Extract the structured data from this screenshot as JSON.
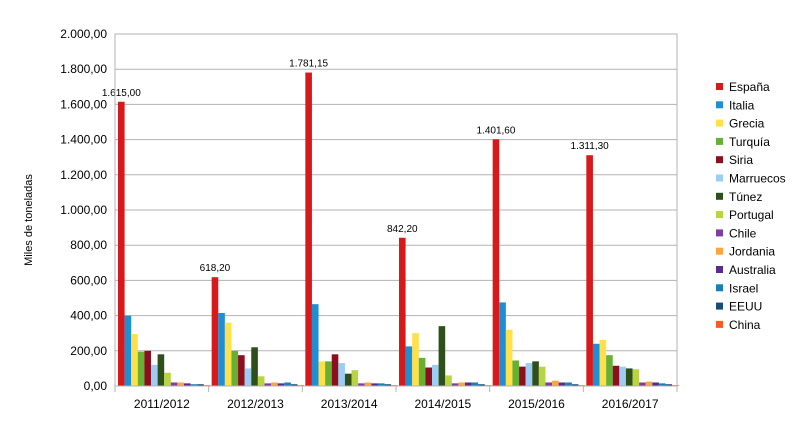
{
  "chart_data": {
    "type": "bar",
    "ylabel": "Miles de toneladas",
    "ylim": [
      0,
      2000
    ],
    "ytick_step": 200,
    "ytick_labels": [
      "0,00",
      "200,00",
      "400,00",
      "600,00",
      "800,00",
      "1.000,00",
      "1.200,00",
      "1.400,00",
      "1.600,00",
      "1.800,00",
      "2.000,00"
    ],
    "grid": true,
    "legend_position": "right",
    "categories": [
      "2011/2012",
      "2012/2013",
      "2013/2014",
      "2014/2015",
      "2015/2016",
      "2016/2017"
    ],
    "series": [
      {
        "name": "España",
        "color": "#d7191c",
        "values": [
          1615.0,
          618.2,
          1781.15,
          842.2,
          1401.6,
          1311.3
        ],
        "data_labels": [
          "1.615,00",
          "618,20",
          "1.781,15",
          "842,20",
          "1.401,60",
          "1.311,30"
        ]
      },
      {
        "name": "Italia",
        "color": "#1f8fd4",
        "values": [
          400,
          415,
          465,
          225,
          475,
          240
        ]
      },
      {
        "name": "Grecia",
        "color": "#fde04a",
        "values": [
          295,
          360,
          140,
          300,
          320,
          262
        ]
      },
      {
        "name": "Turquía",
        "color": "#66b033",
        "values": [
          195,
          200,
          140,
          160,
          145,
          175
        ]
      },
      {
        "name": "Siria",
        "color": "#8b0f1f",
        "values": [
          200,
          175,
          180,
          105,
          110,
          115
        ]
      },
      {
        "name": "Marruecos",
        "color": "#9ccdf4",
        "values": [
          120,
          100,
          130,
          120,
          130,
          110
        ]
      },
      {
        "name": "Túnez",
        "color": "#2e4f1a",
        "values": [
          180,
          220,
          70,
          340,
          140,
          100
        ]
      },
      {
        "name": "Portugal",
        "color": "#b8d442",
        "values": [
          75,
          55,
          90,
          60,
          110,
          95
        ]
      },
      {
        "name": "Chile",
        "color": "#7e3da3",
        "values": [
          20,
          15,
          15,
          15,
          20,
          20
        ]
      },
      {
        "name": "Jordania",
        "color": "#f9a640",
        "values": [
          20,
          20,
          20,
          20,
          30,
          25
        ]
      },
      {
        "name": "Australia",
        "color": "#5a2a8c",
        "values": [
          15,
          15,
          15,
          20,
          20,
          20
        ]
      },
      {
        "name": "Israel",
        "color": "#1a7fb5",
        "values": [
          10,
          20,
          15,
          20,
          20,
          15
        ]
      },
      {
        "name": "EEUU",
        "color": "#154c7a",
        "values": [
          10,
          10,
          10,
          10,
          10,
          10
        ]
      },
      {
        "name": "China",
        "color": "#ff5a1f",
        "values": [
          5,
          5,
          5,
          5,
          5,
          5
        ]
      }
    ]
  }
}
